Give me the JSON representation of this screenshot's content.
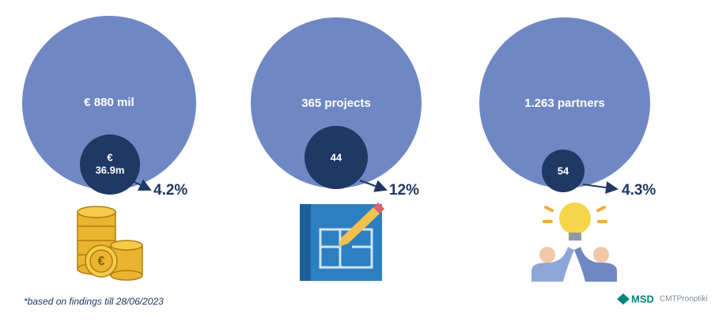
{
  "items": [
    {
      "total": "€ 880 mil",
      "share": [
        "€",
        "36.9m"
      ],
      "percent": "4.2%"
    },
    {
      "total": "365 projects",
      "share": [
        "44"
      ],
      "percent": "12%"
    },
    {
      "total": "1.263 partners",
      "share": [
        "54"
      ],
      "percent": "4.3%"
    }
  ],
  "footnote": "*based on findings till 28/06/2023",
  "logos": [
    "MSD",
    "CMTProoptiki"
  ]
}
